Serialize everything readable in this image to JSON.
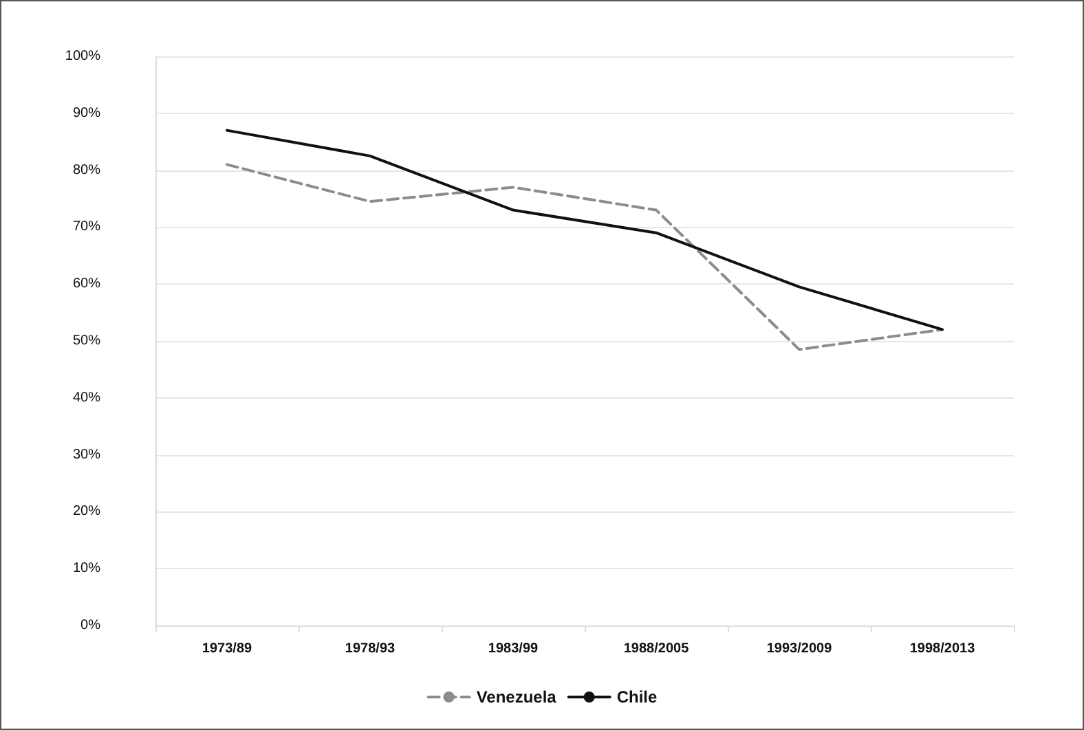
{
  "chart_data": {
    "type": "line",
    "categories": [
      "1973/89",
      "1978/93",
      "1983/99",
      "1988/2005",
      "1993/2009",
      "1998/2013"
    ],
    "series": [
      {
        "name": "Venezuela",
        "color": "#8c8c8c",
        "line_style": "dashed",
        "values": [
          81,
          74.5,
          77,
          73,
          48.5,
          52
        ]
      },
      {
        "name": "Chile",
        "color": "#111111",
        "line_style": "solid",
        "values": [
          87,
          82.5,
          73,
          69,
          59.5,
          52
        ]
      }
    ],
    "ylim": [
      0,
      100
    ],
    "yticks": [
      {
        "value": 0,
        "label": "0%"
      },
      {
        "value": 10,
        "label": "10%"
      },
      {
        "value": 20,
        "label": "20%"
      },
      {
        "value": 30,
        "label": "30%"
      },
      {
        "value": 40,
        "label": "40%"
      },
      {
        "value": 50,
        "label": "50%"
      },
      {
        "value": 60,
        "label": "60%"
      },
      {
        "value": 70,
        "label": "70%"
      },
      {
        "value": 80,
        "label": "80%"
      },
      {
        "value": 90,
        "label": "90%"
      },
      {
        "value": 100,
        "label": "100%"
      }
    ],
    "grid": "y",
    "legend": "bottom",
    "marker": "none"
  }
}
